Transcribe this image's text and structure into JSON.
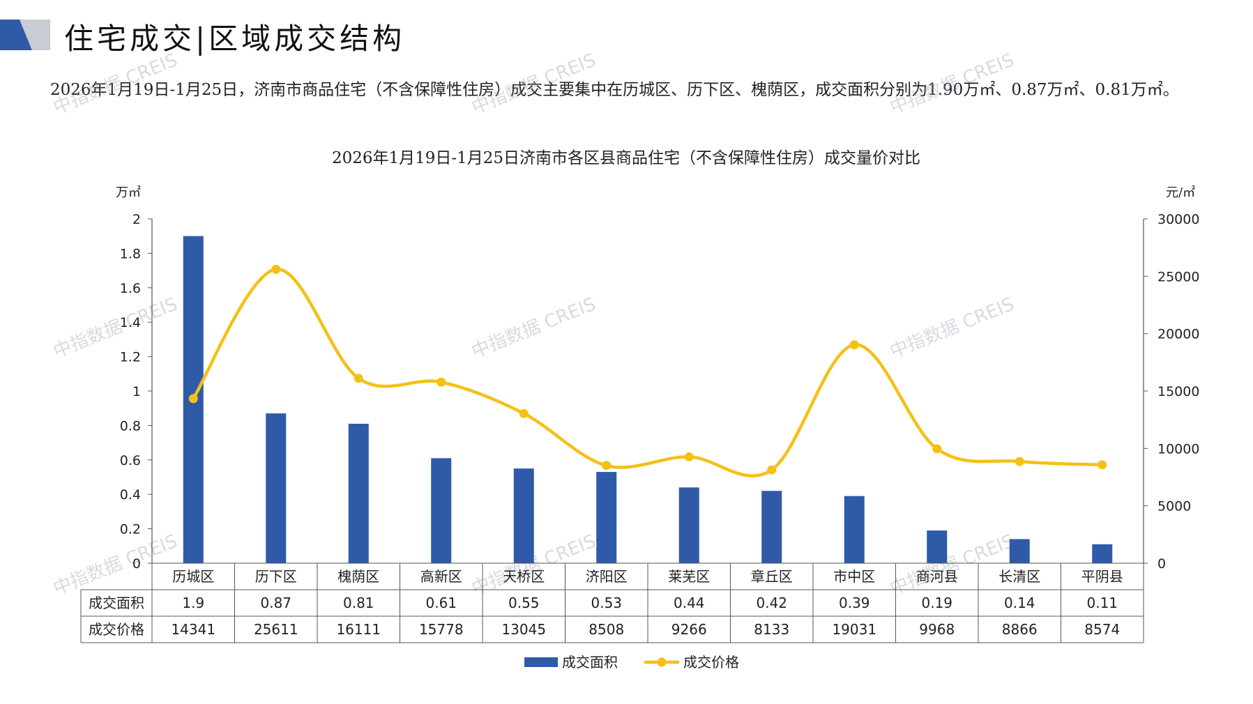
{
  "page": {
    "title": "住宅成交|区域成交结构",
    "summary": "2026年1月19日-1月25日，济南市商品住宅（不含保障性住房）成交主要集中在历城区、历下区、槐荫区，成交面积分别为1.90万㎡、0.87万㎡、0.81万㎡。",
    "watermark": "中指数据 CREIS"
  },
  "colors": {
    "bar": "#2f5aa8",
    "line": "#f5c016",
    "axis": "#555555",
    "logo_dark": "#2f5aa8",
    "logo_light": "#c9ccd3"
  },
  "chart_data": {
    "type": "bar",
    "title": "2026年1月19日-1月25日济南市各区县商品住宅（不含保障性住房）成交量价对比",
    "categories": [
      "历城区",
      "历下区",
      "槐荫区",
      "高新区",
      "天桥区",
      "济阳区",
      "莱芜区",
      "章丘区",
      "市中区",
      "商河县",
      "长清区",
      "平阴县"
    ],
    "series": [
      {
        "name": "成交面积",
        "type": "bar",
        "axis": "left",
        "values": [
          1.9,
          0.87,
          0.81,
          0.61,
          0.55,
          0.53,
          0.44,
          0.42,
          0.39,
          0.19,
          0.14,
          0.11
        ]
      },
      {
        "name": "成交价格",
        "type": "line",
        "axis": "right",
        "values": [
          14341,
          25611,
          16111,
          15778,
          13045,
          8508,
          9266,
          8133,
          19031,
          9968,
          8866,
          8574
        ]
      }
    ],
    "ylabel_left": "万㎡",
    "ylabel_right": "元/㎡",
    "ylim_left": [
      0,
      2
    ],
    "ylim_right": [
      0,
      30000
    ],
    "yticks_left": [
      "2",
      "1.8",
      "1.6",
      "1.4",
      "1.2",
      "1",
      "0.8",
      "0.6",
      "0.4",
      "0.2",
      "0"
    ],
    "yticks_right": [
      "30000",
      "25000",
      "20000",
      "15000",
      "10000",
      "5000",
      "0"
    ],
    "table_rows": [
      {
        "label": "成交面积",
        "values": [
          "1.9",
          "0.87",
          "0.81",
          "0.61",
          "0.55",
          "0.53",
          "0.44",
          "0.42",
          "0.39",
          "0.19",
          "0.14",
          "0.11"
        ]
      },
      {
        "label": "成交价格",
        "values": [
          "14341",
          "25611",
          "16111",
          "15778",
          "13045",
          "8508",
          "9266",
          "8133",
          "19031",
          "9968",
          "8866",
          "8574"
        ]
      }
    ],
    "legend": [
      "成交面积",
      "成交价格"
    ],
    "legend_position": "bottom",
    "grid": false
  }
}
